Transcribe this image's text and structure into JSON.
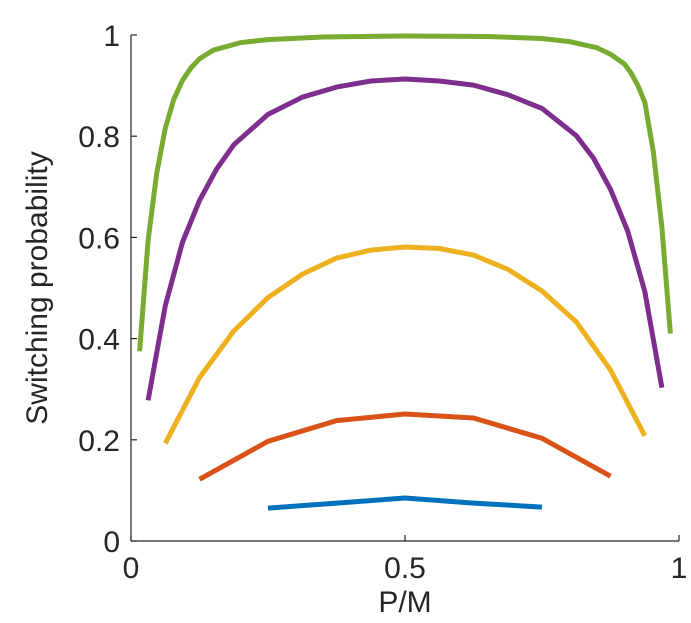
{
  "chart_data": {
    "type": "line",
    "title": "",
    "xlabel": "P/M",
    "ylabel": "Switching probability",
    "xlim": [
      0,
      1
    ],
    "ylim": [
      0,
      1
    ],
    "x_ticks": [
      0,
      0.5,
      1
    ],
    "x_tick_labels": [
      "0",
      "0.5",
      "1"
    ],
    "y_ticks": [
      0,
      0.2,
      0.4,
      0.6,
      0.8,
      1
    ],
    "y_tick_labels": [
      "0",
      "0.2",
      "0.4",
      "0.6",
      "0.8",
      "1"
    ],
    "grid": false,
    "legend": "none",
    "series": [
      {
        "color": "#0072BD",
        "x": [
          0.25,
          0.375,
          0.5,
          0.625,
          0.75
        ],
        "y": [
          0.065,
          0.075,
          0.085,
          0.075,
          0.067
        ]
      },
      {
        "color": "#D95319",
        "x": [
          0.125,
          0.25,
          0.375,
          0.5,
          0.625,
          0.75,
          0.875
        ],
        "y": [
          0.122,
          0.197,
          0.238,
          0.251,
          0.243,
          0.203,
          0.128
        ]
      },
      {
        "color": "#EDB120",
        "x": [
          0.0625,
          0.125,
          0.1875,
          0.25,
          0.3125,
          0.375,
          0.4375,
          0.5,
          0.5625,
          0.625,
          0.6875,
          0.75,
          0.8125,
          0.875,
          0.9375
        ],
        "y": [
          0.193,
          0.323,
          0.415,
          0.481,
          0.527,
          0.559,
          0.575,
          0.581,
          0.578,
          0.565,
          0.537,
          0.494,
          0.433,
          0.338,
          0.208
        ]
      },
      {
        "color": "#7E2F8E",
        "x": [
          0.03125,
          0.0625,
          0.09375,
          0.125,
          0.15625,
          0.1875,
          0.25,
          0.3125,
          0.375,
          0.4375,
          0.5,
          0.5625,
          0.625,
          0.6875,
          0.75,
          0.8125,
          0.84375,
          0.875,
          0.90625,
          0.9375,
          0.96875
        ],
        "y": [
          0.278,
          0.465,
          0.59,
          0.673,
          0.735,
          0.783,
          0.843,
          0.877,
          0.897,
          0.909,
          0.913,
          0.909,
          0.901,
          0.882,
          0.855,
          0.801,
          0.757,
          0.695,
          0.613,
          0.493,
          0.303
        ]
      },
      {
        "color": "#77AC30",
        "x": [
          0.015625,
          0.03125,
          0.046875,
          0.0625,
          0.078125,
          0.09375,
          0.109375,
          0.125,
          0.15,
          0.2,
          0.25,
          0.35,
          0.5,
          0.65,
          0.75,
          0.8,
          0.85,
          0.875,
          0.9,
          0.9125,
          0.925,
          0.9375,
          0.953125,
          0.96875,
          0.984375
        ],
        "y": [
          0.375,
          0.594,
          0.727,
          0.816,
          0.873,
          0.91,
          0.935,
          0.953,
          0.97,
          0.985,
          0.991,
          0.996,
          0.998,
          0.997,
          0.993,
          0.987,
          0.975,
          0.962,
          0.943,
          0.925,
          0.9,
          0.867,
          0.77,
          0.62,
          0.41
        ]
      }
    ]
  }
}
